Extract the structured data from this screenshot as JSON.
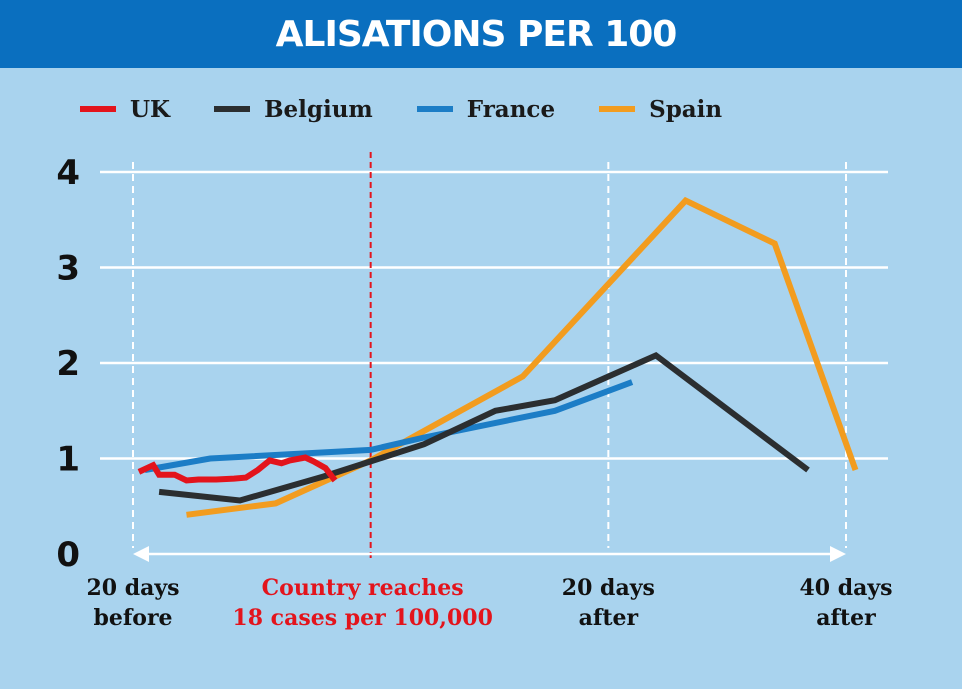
{
  "banner": {
    "title": "ALISATIONS PER 100"
  },
  "colors": {
    "uk": "#e3141c",
    "belgium": "#2b2e30",
    "france": "#1c7dc6",
    "spain": "#f29c1f",
    "background": "#a9d3ee",
    "banner": "#0a6fbf"
  },
  "chart_data": {
    "type": "line",
    "title": "ALISATIONS PER 100",
    "xlabel": "",
    "ylabel": "",
    "xlim": [
      -20,
      40
    ],
    "ylim": [
      0,
      4
    ],
    "grid": true,
    "legend_position": "top",
    "yticks": [
      "0",
      "1",
      "2",
      "3",
      "4"
    ],
    "xticks": [
      {
        "x": -20,
        "line1": "20 days",
        "line2": "before"
      },
      {
        "x": 20,
        "line1": "20 days",
        "line2": "after"
      },
      {
        "x": 40,
        "line1": "40 days",
        "line2": "after"
      }
    ],
    "annotation": {
      "x": 0,
      "line1": "Country reaches",
      "line2": "18 cases per 100,000"
    },
    "series": [
      {
        "name": "UK",
        "color": "#e3141c",
        "x": [
          -19.5,
          -18.3,
          -17.8,
          -16.5,
          -15.5,
          -14.5,
          -13,
          -11.5,
          -10.5,
          -9.5,
          -8.5,
          -7.5,
          -6.8,
          -5.5,
          -4.8,
          -3.8,
          -3.0
        ],
        "y": [
          0.86,
          0.93,
          0.83,
          0.83,
          0.77,
          0.78,
          0.78,
          0.79,
          0.8,
          0.88,
          0.98,
          0.95,
          0.98,
          1.01,
          0.97,
          0.9,
          0.77
        ]
      },
      {
        "name": "Belgium",
        "color": "#2b2e30",
        "x": [
          -17.8,
          -11,
          -4,
          0,
          4.5,
          10.5,
          15.5,
          24,
          36.8
        ],
        "y": [
          0.65,
          0.56,
          0.81,
          0.97,
          1.15,
          1.5,
          1.61,
          2.08,
          0.88
        ]
      },
      {
        "name": "France",
        "color": "#1c7dc6",
        "x": [
          -19,
          -13.5,
          0,
          4.5,
          15.5,
          22
        ],
        "y": [
          0.88,
          1.0,
          1.09,
          1.22,
          1.5,
          1.8
        ]
      },
      {
        "name": "Spain",
        "color": "#f29c1f",
        "x": [
          -15.5,
          -8,
          0,
          12.8,
          26.5,
          34,
          40.8
        ],
        "y": [
          0.41,
          0.53,
          0.98,
          1.86,
          3.7,
          3.25,
          0.88
        ]
      }
    ]
  }
}
